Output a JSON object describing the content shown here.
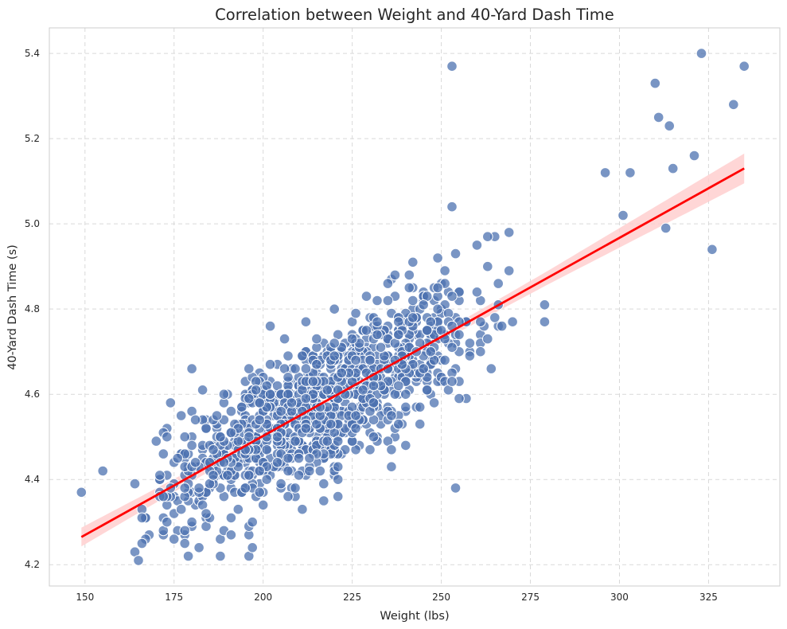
{
  "chart_data": {
    "type": "scatter",
    "title": "Correlation between Weight and 40-Yard Dash Time",
    "xlabel": "Weight (lbs)",
    "ylabel": "40-Yard Dash Time (s)",
    "xlim": [
      140,
      345
    ],
    "ylim": [
      4.15,
      5.46
    ],
    "xticks": [
      150,
      175,
      200,
      225,
      250,
      275,
      300,
      325
    ],
    "yticks": [
      4.2,
      4.4,
      4.6,
      4.8,
      5.0,
      5.2,
      5.4
    ],
    "grid": true,
    "grid_style": "dashed",
    "point_color": "#4c72b0",
    "point_edge_color": "#ffffff",
    "regression": {
      "x": [
        149,
        335
      ],
      "y": [
        4.265,
        5.13
      ],
      "ci_halfwidth_x": [
        149,
        200,
        242,
        280,
        335
      ],
      "ci_halfwidth_y": [
        0.022,
        0.009,
        0.009,
        0.016,
        0.035
      ],
      "line_color": "#ff0000",
      "band_color": "#ffcccc"
    },
    "outliers": {
      "x": [
        149,
        155,
        165,
        188,
        197,
        253,
        254,
        296,
        301,
        303,
        310,
        311,
        313,
        314,
        315,
        321,
        323,
        326,
        332,
        335
      ],
      "y": [
        4.37,
        4.42,
        4.21,
        4.22,
        4.24,
        5.37,
        4.38,
        5.12,
        5.02,
        5.12,
        5.33,
        5.25,
        4.99,
        5.23,
        5.13,
        5.16,
        5.4,
        4.94,
        5.28,
        5.37
      ]
    },
    "cloud": {
      "n": 1100,
      "x_mean": 215,
      "x_sd": 23,
      "x_min": 163,
      "x_max": 280,
      "slope": 0.00465,
      "x_ref": 149,
      "y_ref": 4.265,
      "residual_sd": 0.085
    }
  }
}
